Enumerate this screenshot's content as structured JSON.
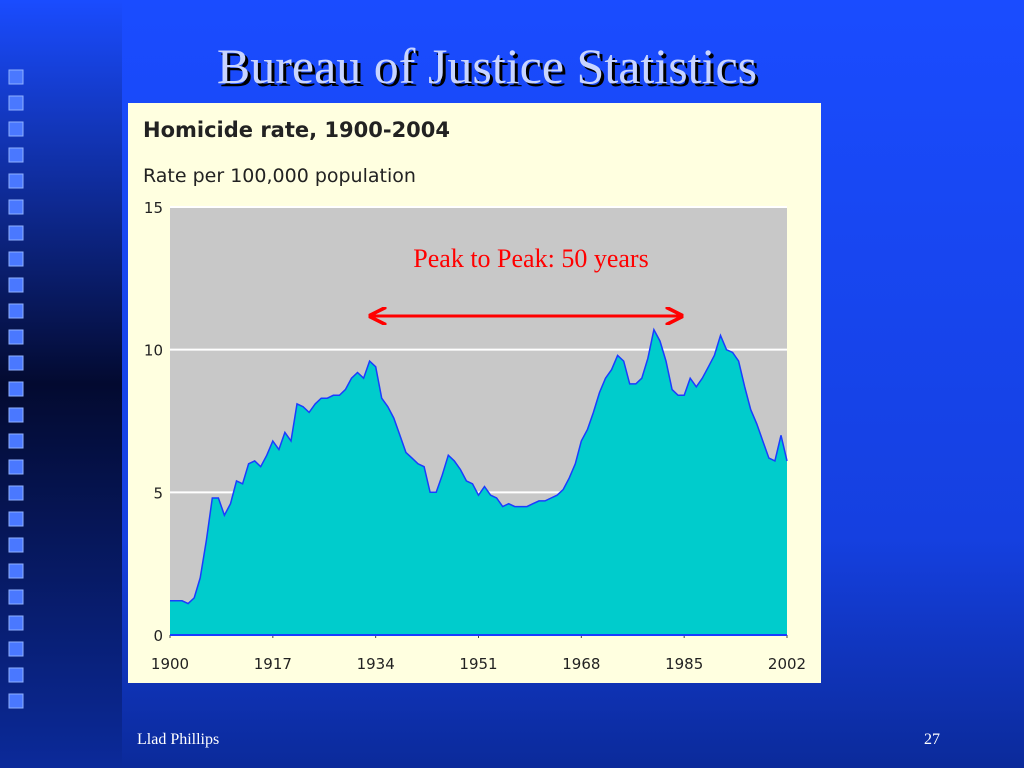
{
  "slide_title": "Bureau of Justice Statistics",
  "footer_left": "Llad Phillips",
  "footer_right": "27",
  "chart_data": {
    "type": "area",
    "title": "Homicide rate, 1900-2004",
    "subtitle": "Rate per 100,000 population",
    "annotation": "Peak to Peak: 50 years",
    "color": "#00cccc",
    "x": [
      1900,
      1901,
      1902,
      1903,
      1904,
      1905,
      1906,
      1907,
      1908,
      1909,
      1910,
      1911,
      1912,
      1913,
      1914,
      1915,
      1916,
      1917,
      1918,
      1919,
      1920,
      1921,
      1922,
      1923,
      1924,
      1925,
      1926,
      1927,
      1928,
      1929,
      1930,
      1931,
      1932,
      1933,
      1934,
      1935,
      1936,
      1937,
      1938,
      1939,
      1940,
      1941,
      1942,
      1943,
      1944,
      1945,
      1946,
      1947,
      1948,
      1949,
      1950,
      1951,
      1952,
      1953,
      1954,
      1955,
      1956,
      1957,
      1958,
      1959,
      1960,
      1961,
      1962,
      1963,
      1964,
      1965,
      1966,
      1967,
      1968,
      1969,
      1970,
      1971,
      1972,
      1973,
      1974,
      1975,
      1976,
      1977,
      1978,
      1979,
      1980,
      1981,
      1982,
      1983,
      1984,
      1985,
      1986,
      1987,
      1988,
      1989,
      1990,
      1991,
      1992,
      1993,
      1994,
      1995,
      1996,
      1997,
      1998,
      1999,
      2000,
      2001,
      2002
    ],
    "values": [
      1.2,
      1.2,
      1.2,
      1.1,
      1.3,
      2.0,
      3.3,
      4.8,
      4.8,
      4.2,
      4.6,
      5.4,
      5.3,
      6.0,
      6.1,
      5.9,
      6.3,
      6.8,
      6.5,
      7.1,
      6.8,
      8.1,
      8.0,
      7.8,
      8.1,
      8.3,
      8.3,
      8.4,
      8.4,
      8.6,
      9.0,
      9.2,
      9.0,
      9.6,
      9.4,
      8.3,
      8.0,
      7.6,
      7.0,
      6.4,
      6.2,
      6.0,
      5.9,
      5.0,
      5.0,
      5.6,
      6.3,
      6.1,
      5.8,
      5.4,
      5.3,
      4.9,
      5.2,
      4.9,
      4.8,
      4.5,
      4.6,
      4.5,
      4.5,
      4.5,
      4.6,
      4.7,
      4.7,
      4.8,
      4.9,
      5.1,
      5.5,
      6.0,
      6.8,
      7.2,
      7.8,
      8.5,
      9.0,
      9.3,
      9.8,
      9.6,
      8.8,
      8.8,
      9.0,
      9.7,
      10.7,
      10.3,
      9.6,
      8.6,
      8.4,
      8.4,
      9.0,
      8.7,
      9.0,
      9.4,
      9.8,
      10.5,
      10.0,
      9.9,
      9.6,
      8.7,
      7.9,
      7.4,
      6.8,
      6.2,
      6.1,
      7.0,
      6.1
    ],
    "xlim": [
      1900,
      2002
    ],
    "xticks": [
      1900,
      1917,
      1934,
      1951,
      1968,
      1985,
      2002
    ],
    "ylim": [
      0,
      15
    ],
    "yticks": [
      0,
      5,
      10,
      15
    ],
    "grid": true
  }
}
